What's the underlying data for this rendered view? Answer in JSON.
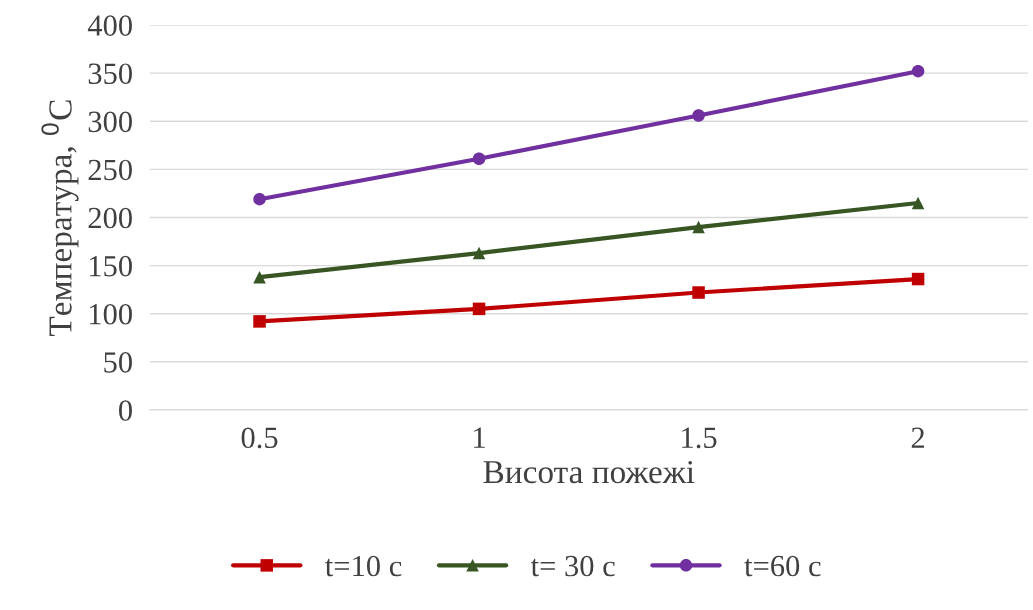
{
  "chart_data": {
    "type": "line",
    "xlabel": "Висота пожежі",
    "ylabel": "Температура, $^{0}$C",
    "categories": [
      "0.5",
      "1",
      "1.5",
      "2"
    ],
    "series": [
      {
        "name": "t=10 с",
        "color": "#c00000",
        "marker": "square",
        "values": [
          92,
          105,
          122,
          136
        ]
      },
      {
        "name": "t= 30 с",
        "color": "#375623",
        "marker": "triangle",
        "values": [
          138,
          163,
          190,
          215
        ]
      },
      {
        "name": "t=60 с",
        "color": "#7030a0",
        "marker": "circle",
        "values": [
          219,
          261,
          306,
          352
        ]
      }
    ],
    "ylim": [
      0,
      400
    ],
    "yticks": [
      0,
      50,
      100,
      150,
      200,
      250,
      300,
      350,
      400
    ],
    "grid": "y",
    "legend": "bottom",
    "line_style": "solid"
  }
}
